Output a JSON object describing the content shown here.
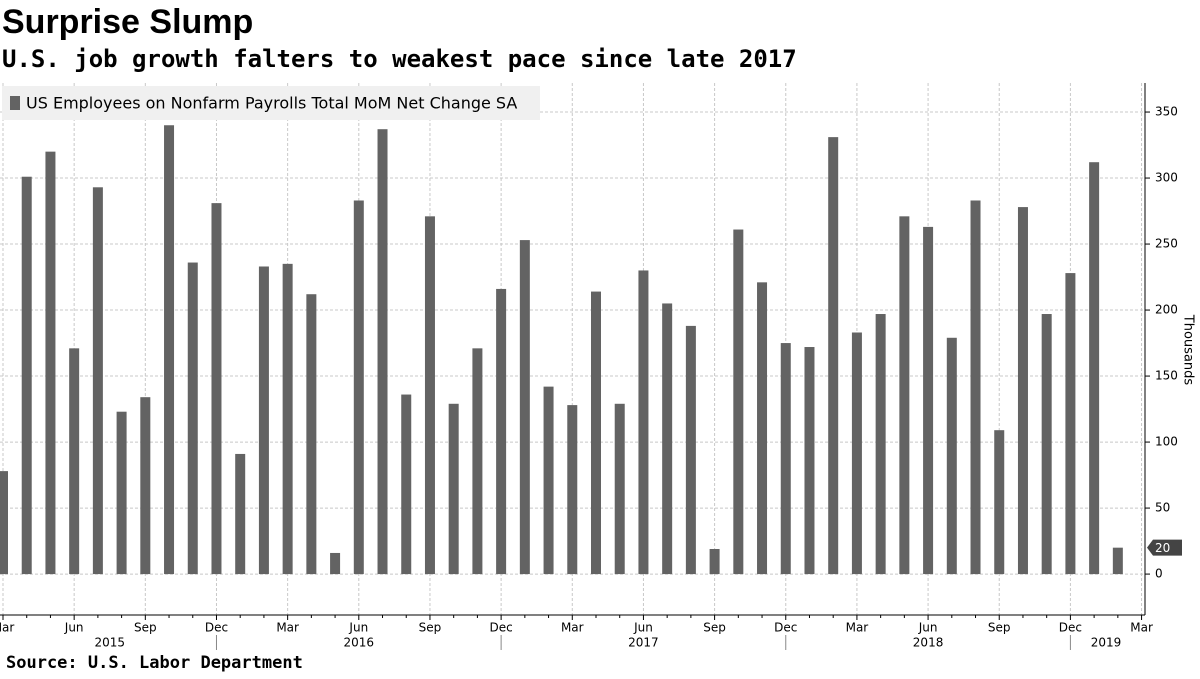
{
  "chart_data": {
    "type": "bar",
    "title": "Surprise Slump",
    "subtitle": "U.S. job growth falters to weakest pace since late 2017",
    "source": "Source: U.S. Labor Department",
    "y_axis_label": "Thousands",
    "categories": [
      "Mar",
      null,
      null,
      "Jun",
      null,
      null,
      "Sep",
      null,
      null,
      "Dec",
      null,
      null,
      "Mar",
      null,
      null,
      "Jun",
      null,
      null,
      "Sep",
      null,
      null,
      "Dec",
      null,
      null,
      "Mar",
      null,
      null,
      "Jun",
      null,
      null,
      "Sep",
      null,
      null,
      "Dec",
      null,
      null,
      "Mar",
      null,
      null,
      "Jun",
      null,
      null,
      "Sep",
      null,
      null,
      "Dec",
      null,
      null,
      "Mar"
    ],
    "year_ticks": [
      {
        "value": 4.5,
        "label": "2015"
      },
      {
        "value": 15,
        "label": "2016"
      },
      {
        "value": 27,
        "label": "2017"
      },
      {
        "value": 39,
        "label": "2018"
      },
      {
        "value": 46.5,
        "label": "2019"
      }
    ],
    "series": [
      {
        "name": "US Employees on Nonfarm Payrolls Total MoM Net Change SA",
        "color": "#636363",
        "values": [
          78,
          301,
          320,
          171,
          293,
          123,
          134,
          340,
          236,
          281,
          91,
          233,
          235,
          212,
          16,
          283,
          337,
          136,
          271,
          129,
          171,
          216,
          253,
          142,
          128,
          214,
          129,
          230,
          205,
          188,
          19,
          261,
          221,
          175,
          172,
          331,
          183,
          197,
          271,
          263,
          179,
          283,
          109,
          278,
          197,
          228,
          312,
          20,
          null
        ]
      }
    ],
    "last_value_label": "20",
    "ylim": [
      -31,
      372
    ],
    "yticks": [
      0,
      50,
      100,
      150,
      200,
      250,
      300,
      350
    ],
    "grid": true
  }
}
